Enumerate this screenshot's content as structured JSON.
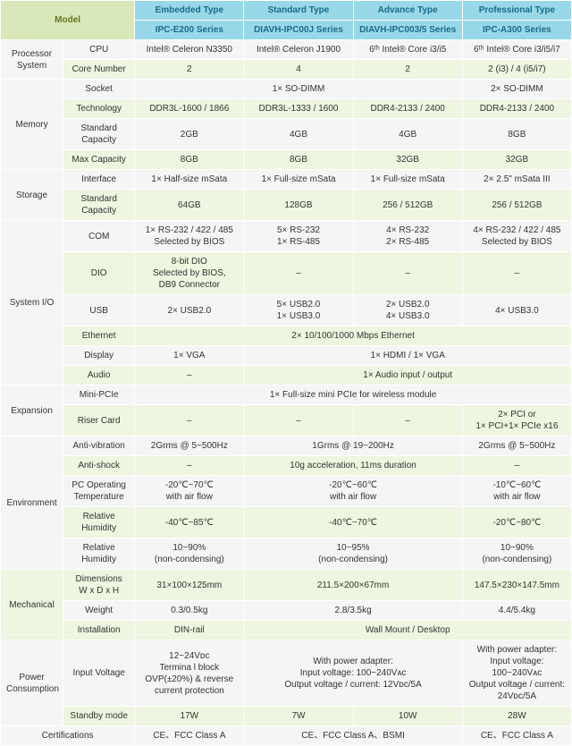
{
  "header": {
    "model": "Model",
    "types": [
      "Embedded Type",
      "Standard Type",
      "Advance Type",
      "Professional Type"
    ],
    "series": [
      "IPC-E200 Series",
      "DIAVH-IPC00J Series",
      "DIAVH-IPC003/5 Series",
      "IPC-A300 Series"
    ]
  },
  "groups": [
    {
      "name": "Processor System",
      "rows": [
        {
          "label": "CPU",
          "cells": [
            "Intel® Celeron N3350",
            "Intel® Celeron J1900",
            "6ᵗʰ Intel® Core i3/i5",
            "6ᵗʰ Intel® Core i3/i5/i7"
          ]
        },
        {
          "label": "Core Number",
          "cells": [
            "2",
            "4",
            "2",
            "2 (i3) / 4 (i5/i7)"
          ]
        }
      ]
    },
    {
      "name": "Memory",
      "rows": [
        {
          "label": "Socket",
          "cells": [
            {
              "span": 3,
              "text": "1× SO-DIMM"
            },
            "2× SO-DIMM"
          ]
        },
        {
          "label": "Technology",
          "cells": [
            "DDR3L-1600 / 1866",
            "DDR3L-1333 / 1600",
            "DDR4-2133 / 2400",
            "DDR4-2133 / 2400"
          ]
        },
        {
          "label": "Standard Capacity",
          "cells": [
            "2GB",
            "4GB",
            "4GB",
            "8GB"
          ]
        },
        {
          "label": "Max Capacity",
          "cells": [
            "8GB",
            "8GB",
            "32GB",
            "32GB"
          ]
        }
      ]
    },
    {
      "name": "Storage",
      "rows": [
        {
          "label": "Interface",
          "cells": [
            "1× Half-size mSata",
            "1× Full-size mSata",
            "1× Full-size mSata",
            "2× 2.5\" mSata III"
          ]
        },
        {
          "label": "Standard Capacity",
          "cells": [
            "64GB",
            "128GB",
            "256 / 512GB",
            "256 / 512GB"
          ]
        }
      ]
    },
    {
      "name": "System I/O",
      "rows": [
        {
          "label": "COM",
          "cells": [
            "1× RS-232 / 422 / 485\nSelected by BIOS",
            "5× RS-232\n1× RS-485",
            "4× RS-232\n2× RS-485",
            "4× RS-232 / 422 / 485\nSelected by BIOS"
          ]
        },
        {
          "label": "DIO",
          "cells": [
            "8-bit DIO\nSelected by BIOS,\nDB9 Connector",
            "–",
            "–",
            "–"
          ]
        },
        {
          "label": "USB",
          "cells": [
            "2× USB2.0",
            "5× USB2.0\n1× USB3.0",
            "2× USB2.0\n4× USB3.0",
            "4× USB3.0"
          ]
        },
        {
          "label": "Ethernet",
          "cells": [
            {
              "span": 4,
              "text": "2× 10/100/1000 Mbps Ethernet"
            }
          ]
        },
        {
          "label": "Display",
          "cells": [
            "1× VGA",
            {
              "span": 3,
              "text": "1× HDMI / 1× VGA"
            }
          ]
        },
        {
          "label": "Audio",
          "cells": [
            "–",
            {
              "span": 3,
              "text": "1× Audio input / output"
            }
          ]
        }
      ]
    },
    {
      "name": "Expansion",
      "rows": [
        {
          "label": "Mini-PCIe",
          "cells": [
            {
              "span": 4,
              "text": "1× Full-size mini PCIe for wireless module"
            }
          ]
        },
        {
          "label": "Riser Card",
          "cells": [
            "–",
            "–",
            "–",
            "2× PCI or\n1× PCI+1× PCIe x16"
          ]
        }
      ]
    },
    {
      "name": "Environment",
      "rows": [
        {
          "label": "Anti-vibration",
          "cells": [
            "2Grms @ 5~500Hz",
            {
              "span": 2,
              "text": "1Grms @ 19~200Hz"
            },
            "2Grms @ 5~500Hz"
          ]
        },
        {
          "label": "Anti-shock",
          "cells": [
            "–",
            {
              "span": 2,
              "text": "10g acceleration, 11ms duration"
            },
            "–"
          ]
        },
        {
          "label": "PC Operating Temperature",
          "cells": [
            "-20℃~70℃\nwith air flow",
            {
              "span": 2,
              "text": "-20℃~60℃\nwith air flow"
            },
            "-10℃~60℃\nwith air flow"
          ]
        },
        {
          "label": "Relative Humidity",
          "cells": [
            "-40℃~85℃",
            {
              "span": 2,
              "text": "-40℃~70℃"
            },
            "-20℃~80℃"
          ]
        },
        {
          "label": "Relative Humidity",
          "cells": [
            "10~90%\n(non-condensing)",
            {
              "span": 2,
              "text": "10~95%\n(non-condensing)"
            },
            "10~90%\n(non-condensing)"
          ]
        }
      ]
    },
    {
      "name": "Mechanical",
      "rows": [
        {
          "label": "Dimensions\nW x D x H",
          "cells": [
            "31×100×125mm",
            {
              "span": 2,
              "text": "211.5×200×67mm"
            },
            "147.5×230×147.5mm"
          ]
        },
        {
          "label": "Weight",
          "cells": [
            "0.3/0.5kg",
            {
              "span": 2,
              "text": "2.8/3.5kg"
            },
            "4.4/5.4kg"
          ]
        },
        {
          "label": "Installation",
          "cells": [
            "DIN-rail",
            {
              "span": 3,
              "text": "Wall Mount / Desktop"
            }
          ]
        }
      ]
    },
    {
      "name": "Power Consumption",
      "rows": [
        {
          "label": "Input Voltage",
          "cells": [
            "12~24Vᴅᴄ\nTermina l block\nOVP(±20%) & reverse\ncurrent protection",
            {
              "span": 2,
              "text": "With power adapter:\nInput voltage: 100~240Vᴀᴄ\nOutput voltage / current: 12Vᴅᴄ/5A"
            },
            "With power adapter:\nInput voltage:\n100~240Vᴀᴄ\nOutput voltage / current:\n24Vᴅᴄ/5A"
          ]
        },
        {
          "label": "Standby mode",
          "cells": [
            "17W",
            "7W",
            "10W",
            "28W"
          ]
        }
      ]
    },
    {
      "name": "Certifications",
      "fullRow": true,
      "rows": [
        {
          "label": "",
          "cells": [
            "CE、FCC Class A",
            {
              "span": 2,
              "text": "CE、FCC Class A、BSMI"
            },
            "CE、FCC Class A"
          ]
        }
      ]
    }
  ]
}
